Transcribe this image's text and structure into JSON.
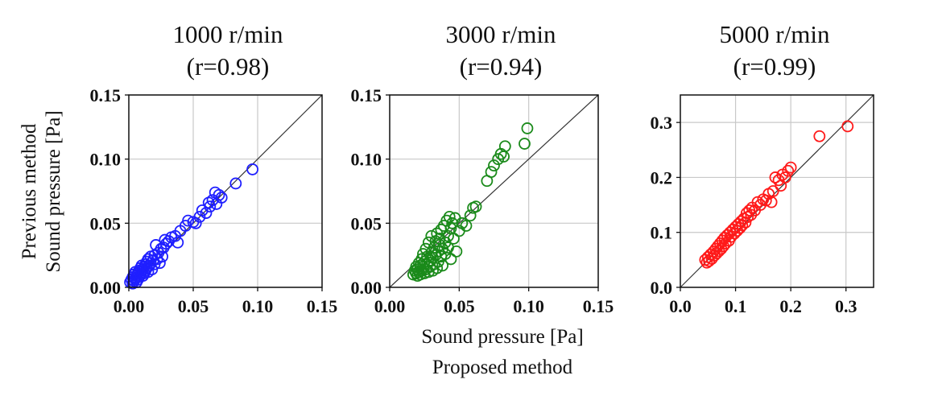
{
  "figure": {
    "ylabel_lines": [
      "Previous method",
      "Sound pressure [Pa]"
    ],
    "xlabel_lines": [
      "Sound pressure [Pa]",
      "Proposed method"
    ]
  },
  "chart_data": [
    {
      "type": "scatter",
      "title_lines": [
        "1000 r/min",
        "(r=0.98)"
      ],
      "xlim": [
        0,
        0.15
      ],
      "ylim": [
        0,
        0.15
      ],
      "xticks": [
        "0.00",
        "0.05",
        "0.10",
        "0.15"
      ],
      "yticks": [
        "0.00",
        "0.05",
        "0.10",
        "0.15"
      ],
      "tick_values": [
        0,
        0.05,
        0.1,
        0.15
      ],
      "grid": true,
      "identity_line": true,
      "color": "#1f1fff",
      "points": [
        [
          0.001,
          0.004
        ],
        [
          0.002,
          0.006
        ],
        [
          0.003,
          0.003
        ],
        [
          0.003,
          0.008
        ],
        [
          0.004,
          0.005
        ],
        [
          0.004,
          0.01
        ],
        [
          0.005,
          0.007
        ],
        [
          0.005,
          0.012
        ],
        [
          0.006,
          0.004
        ],
        [
          0.006,
          0.009
        ],
        [
          0.007,
          0.011
        ],
        [
          0.007,
          0.006
        ],
        [
          0.008,
          0.013
        ],
        [
          0.008,
          0.008
        ],
        [
          0.009,
          0.015
        ],
        [
          0.009,
          0.01
        ],
        [
          0.01,
          0.012
        ],
        [
          0.01,
          0.017
        ],
        [
          0.011,
          0.009
        ],
        [
          0.011,
          0.014
        ],
        [
          0.012,
          0.016
        ],
        [
          0.012,
          0.011
        ],
        [
          0.013,
          0.018
        ],
        [
          0.013,
          0.013
        ],
        [
          0.014,
          0.02
        ],
        [
          0.014,
          0.015
        ],
        [
          0.015,
          0.012
        ],
        [
          0.015,
          0.022
        ],
        [
          0.016,
          0.017
        ],
        [
          0.017,
          0.019
        ],
        [
          0.017,
          0.024
        ],
        [
          0.018,
          0.014
        ],
        [
          0.019,
          0.021
        ],
        [
          0.02,
          0.018
        ],
        [
          0.02,
          0.025
        ],
        [
          0.021,
          0.033
        ],
        [
          0.022,
          0.022
        ],
        [
          0.023,
          0.027
        ],
        [
          0.024,
          0.019
        ],
        [
          0.025,
          0.03
        ],
        [
          0.026,
          0.024
        ],
        [
          0.027,
          0.031
        ],
        [
          0.028,
          0.037
        ],
        [
          0.029,
          0.034
        ],
        [
          0.031,
          0.036
        ],
        [
          0.033,
          0.039
        ],
        [
          0.036,
          0.04
        ],
        [
          0.038,
          0.035
        ],
        [
          0.04,
          0.044
        ],
        [
          0.044,
          0.048
        ],
        [
          0.046,
          0.052
        ],
        [
          0.05,
          0.051
        ],
        [
          0.052,
          0.05
        ],
        [
          0.055,
          0.055
        ],
        [
          0.057,
          0.06
        ],
        [
          0.06,
          0.058
        ],
        [
          0.062,
          0.066
        ],
        [
          0.063,
          0.063
        ],
        [
          0.065,
          0.068
        ],
        [
          0.067,
          0.074
        ],
        [
          0.068,
          0.065
        ],
        [
          0.07,
          0.072
        ],
        [
          0.072,
          0.07
        ],
        [
          0.083,
          0.081
        ],
        [
          0.096,
          0.092
        ]
      ]
    },
    {
      "type": "scatter",
      "title_lines": [
        "3000 r/min",
        "(r=0.94)"
      ],
      "xlim": [
        0,
        0.15
      ],
      "ylim": [
        0,
        0.15
      ],
      "xticks": [
        "0.00",
        "0.05",
        "0.10",
        "0.15"
      ],
      "yticks": [
        "0.00",
        "0.05",
        "0.10",
        "0.15"
      ],
      "tick_values": [
        0,
        0.05,
        0.1,
        0.15
      ],
      "grid": true,
      "identity_line": true,
      "color": "#1a8a1a",
      "points": [
        [
          0.017,
          0.01
        ],
        [
          0.018,
          0.013
        ],
        [
          0.019,
          0.011
        ],
        [
          0.019,
          0.016
        ],
        [
          0.02,
          0.009
        ],
        [
          0.02,
          0.014
        ],
        [
          0.021,
          0.019
        ],
        [
          0.021,
          0.012
        ],
        [
          0.022,
          0.01
        ],
        [
          0.022,
          0.017
        ],
        [
          0.023,
          0.022
        ],
        [
          0.023,
          0.013
        ],
        [
          0.024,
          0.016
        ],
        [
          0.024,
          0.026
        ],
        [
          0.025,
          0.011
        ],
        [
          0.025,
          0.02
        ],
        [
          0.026,
          0.03
        ],
        [
          0.026,
          0.014
        ],
        [
          0.027,
          0.018
        ],
        [
          0.027,
          0.024
        ],
        [
          0.028,
          0.012
        ],
        [
          0.028,
          0.035
        ],
        [
          0.029,
          0.021
        ],
        [
          0.029,
          0.016
        ],
        [
          0.03,
          0.027
        ],
        [
          0.03,
          0.04
        ],
        [
          0.031,
          0.013
        ],
        [
          0.031,
          0.023
        ],
        [
          0.032,
          0.031
        ],
        [
          0.032,
          0.018
        ],
        [
          0.033,
          0.036
        ],
        [
          0.033,
          0.025
        ],
        [
          0.034,
          0.015
        ],
        [
          0.034,
          0.042
        ],
        [
          0.035,
          0.028
        ],
        [
          0.035,
          0.02
        ],
        [
          0.036,
          0.033
        ],
        [
          0.036,
          0.038
        ],
        [
          0.037,
          0.024
        ],
        [
          0.037,
          0.045
        ],
        [
          0.038,
          0.017
        ],
        [
          0.038,
          0.03
        ],
        [
          0.039,
          0.048
        ],
        [
          0.04,
          0.035
        ],
        [
          0.04,
          0.026
        ],
        [
          0.041,
          0.052
        ],
        [
          0.042,
          0.04
        ],
        [
          0.042,
          0.031
        ],
        [
          0.043,
          0.055
        ],
        [
          0.044,
          0.022
        ],
        [
          0.044,
          0.046
        ],
        [
          0.045,
          0.05
        ],
        [
          0.046,
          0.038
        ],
        [
          0.047,
          0.054
        ],
        [
          0.048,
          0.028
        ],
        [
          0.05,
          0.044
        ],
        [
          0.052,
          0.05
        ],
        [
          0.055,
          0.048
        ],
        [
          0.058,
          0.056
        ],
        [
          0.06,
          0.062
        ],
        [
          0.062,
          0.063
        ],
        [
          0.07,
          0.083
        ],
        [
          0.073,
          0.09
        ],
        [
          0.075,
          0.095
        ],
        [
          0.078,
          0.1
        ],
        [
          0.08,
          0.104
        ],
        [
          0.082,
          0.102
        ],
        [
          0.083,
          0.11
        ],
        [
          0.097,
          0.112
        ],
        [
          0.099,
          0.124
        ]
      ]
    },
    {
      "type": "scatter",
      "title_lines": [
        "5000 r/min",
        "(r=0.99)"
      ],
      "xlim": [
        0,
        0.35
      ],
      "ylim": [
        0,
        0.35
      ],
      "xticks": [
        "0.0",
        "0.1",
        "0.2",
        "0.3"
      ],
      "yticks": [
        "0.0",
        "0.1",
        "0.2",
        "0.3"
      ],
      "tick_values": [
        0,
        0.1,
        0.2,
        0.3
      ],
      "grid": true,
      "identity_line": true,
      "color": "#ff1a1a",
      "points": [
        [
          0.045,
          0.05
        ],
        [
          0.048,
          0.045
        ],
        [
          0.05,
          0.055
        ],
        [
          0.052,
          0.048
        ],
        [
          0.055,
          0.06
        ],
        [
          0.057,
          0.052
        ],
        [
          0.06,
          0.065
        ],
        [
          0.062,
          0.058
        ],
        [
          0.064,
          0.07
        ],
        [
          0.066,
          0.062
        ],
        [
          0.068,
          0.075
        ],
        [
          0.07,
          0.066
        ],
        [
          0.072,
          0.08
        ],
        [
          0.074,
          0.07
        ],
        [
          0.076,
          0.085
        ],
        [
          0.078,
          0.075
        ],
        [
          0.08,
          0.09
        ],
        [
          0.082,
          0.08
        ],
        [
          0.085,
          0.095
        ],
        [
          0.088,
          0.085
        ],
        [
          0.09,
          0.1
        ],
        [
          0.092,
          0.092
        ],
        [
          0.095,
          0.105
        ],
        [
          0.098,
          0.098
        ],
        [
          0.1,
          0.11
        ],
        [
          0.103,
          0.103
        ],
        [
          0.105,
          0.115
        ],
        [
          0.108,
          0.108
        ],
        [
          0.11,
          0.12
        ],
        [
          0.112,
          0.113
        ],
        [
          0.115,
          0.125
        ],
        [
          0.118,
          0.118
        ],
        [
          0.12,
          0.135
        ],
        [
          0.122,
          0.128
        ],
        [
          0.125,
          0.14
        ],
        [
          0.128,
          0.132
        ],
        [
          0.13,
          0.145
        ],
        [
          0.135,
          0.14
        ],
        [
          0.14,
          0.155
        ],
        [
          0.145,
          0.15
        ],
        [
          0.15,
          0.16
        ],
        [
          0.155,
          0.158
        ],
        [
          0.16,
          0.17
        ],
        [
          0.165,
          0.155
        ],
        [
          0.168,
          0.175
        ],
        [
          0.172,
          0.2
        ],
        [
          0.178,
          0.195
        ],
        [
          0.182,
          0.185
        ],
        [
          0.185,
          0.205
        ],
        [
          0.19,
          0.2
        ],
        [
          0.195,
          0.212
        ],
        [
          0.2,
          0.218
        ],
        [
          0.252,
          0.275
        ],
        [
          0.303,
          0.293
        ]
      ]
    }
  ]
}
